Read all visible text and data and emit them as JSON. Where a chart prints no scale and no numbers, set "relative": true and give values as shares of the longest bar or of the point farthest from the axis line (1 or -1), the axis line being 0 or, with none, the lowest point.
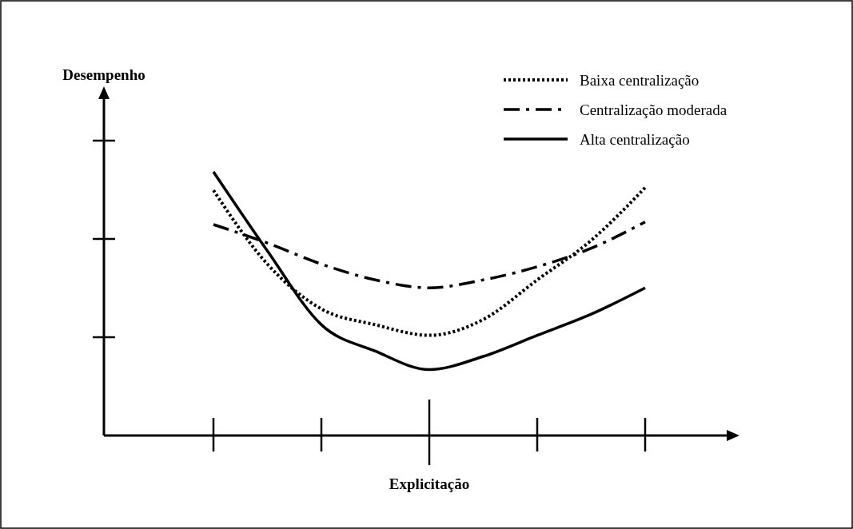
{
  "chart_data": {
    "type": "line",
    "relative": true,
    "xlabel": "Explicitação",
    "annotations": [
      "Desempenho"
    ],
    "categories": [
      null,
      null,
      null,
      null,
      null,
      null,
      null,
      null,
      null
    ],
    "series": [
      {
        "name": "Baixa centralização",
        "color": "#000000",
        "line_style": "dotted",
        "values": [
          0.93,
          0.65,
          0.48,
          0.42,
          0.38,
          0.44,
          0.59,
          0.74,
          0.94
        ]
      },
      {
        "name": "Centralização moderada",
        "color": "#000000",
        "line_style": "dashdot",
        "values": [
          0.8,
          0.73,
          0.65,
          0.59,
          0.56,
          0.59,
          0.64,
          0.71,
          0.81
        ]
      },
      {
        "name": "Alta centralização",
        "color": "#000000",
        "line_style": "solid",
        "values": [
          1,
          0.7,
          0.42,
          0.32,
          0.25,
          0.3,
          0.38,
          0.46,
          0.56
        ]
      }
    ],
    "legend": "top right"
  }
}
